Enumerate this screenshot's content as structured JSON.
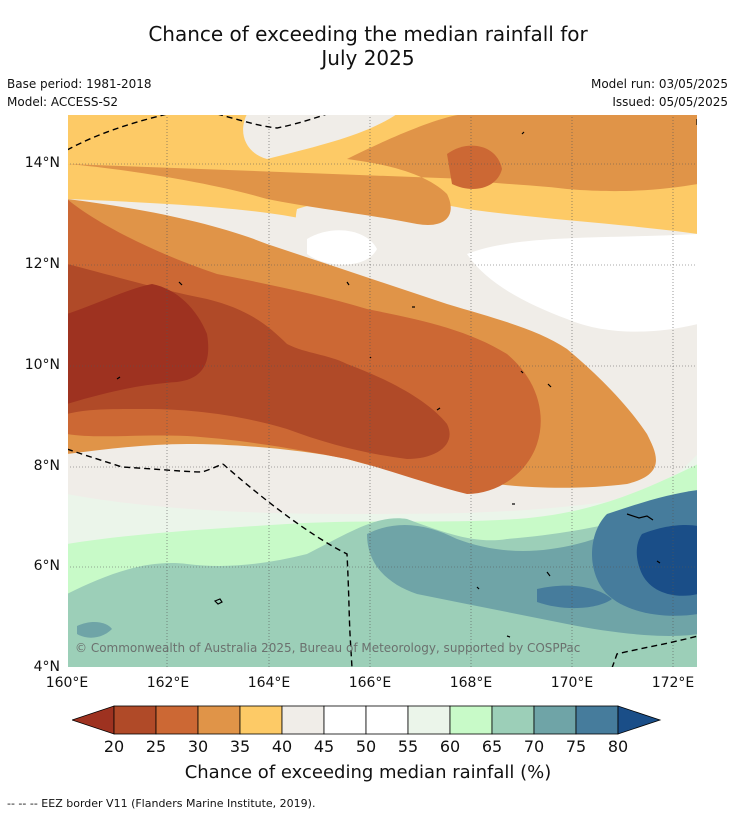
{
  "title_line1": "Chance of exceeding the median rainfall for",
  "title_line2": "July 2025",
  "base_period": "Base period: 1981-2018",
  "model": "Model: ACCESS-S2",
  "model_run": "Model run: 03/05/2025",
  "issued": "Issued: 05/05/2025",
  "copyright": "© Commonwealth of Australia 2025, Bureau of Meteorology, supported by COSPPac",
  "lat_labels": [
    "14°N",
    "12°N",
    "10°N",
    "8°N",
    "6°N",
    "4°N"
  ],
  "lon_labels": [
    "160°E",
    "162°E",
    "164°E",
    "166°E",
    "168°E",
    "170°E",
    "172°E"
  ],
  "colorbar": {
    "labels": [
      "20",
      "25",
      "30",
      "35",
      "40",
      "45",
      "50",
      "55",
      "60",
      "65",
      "70",
      "75",
      "80"
    ],
    "colors": [
      "#9e3220",
      "#b04a28",
      "#cc6834",
      "#e09448",
      "#fdca66",
      "#f0ede8",
      "#ffffff",
      "#ffffff",
      "#ebf5ea",
      "#c8fac8",
      "#9ccfb8",
      "#6fa4a7",
      "#467c9c",
      "#1a4e88"
    ],
    "title": "Chance of exceeding median rainfall (%)"
  },
  "footer": "--  --  -- EEZ border V11 (Flanders Marine Institute, 2019)."
}
